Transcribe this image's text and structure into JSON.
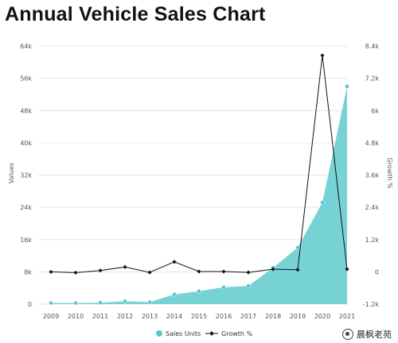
{
  "title": "Annual Vehicle Sales Chart",
  "watermark": "晨枫老苑",
  "colors": {
    "sales": "#6fd0d2",
    "sales_point": "#5cc6c8",
    "growth": "#111111",
    "grid": "#e6e6e6",
    "axis_text": "#555555"
  },
  "chart_data": {
    "type": "area",
    "title": "Annual Vehicle Sales Chart",
    "xlabel": "",
    "ylabel": "Values",
    "y2label": "Growth %",
    "categories": [
      "2009",
      "2010",
      "2011",
      "2012",
      "2013",
      "2014",
      "2015",
      "2016",
      "2017",
      "2018",
      "2019",
      "2020",
      "2021"
    ],
    "y_ticks": [
      "0",
      "8k",
      "16k",
      "24k",
      "32k",
      "40k",
      "48k",
      "56k",
      "64k"
    ],
    "y2_ticks": [
      "-1.2k",
      "0",
      "1.2k",
      "2.4k",
      "3.6k",
      "4.8k",
      "6k",
      "7.2k",
      "8.4k"
    ],
    "ylim": [
      0,
      64000
    ],
    "y2lim": [
      -1200,
      8400
    ],
    "grid": true,
    "legend_position": "bottom",
    "series": [
      {
        "name": "Sales Units",
        "type": "area",
        "axis": "left",
        "values": [
          300,
          250,
          350,
          700,
          500,
          2400,
          3200,
          4200,
          4500,
          9000,
          14000,
          25200,
          54000
        ]
      },
      {
        "name": "Growth %",
        "type": "line",
        "axis": "right",
        "values": [
          0,
          -30,
          50,
          180,
          -20,
          370,
          10,
          10,
          -20,
          100,
          80,
          8050,
          100
        ]
      }
    ]
  }
}
